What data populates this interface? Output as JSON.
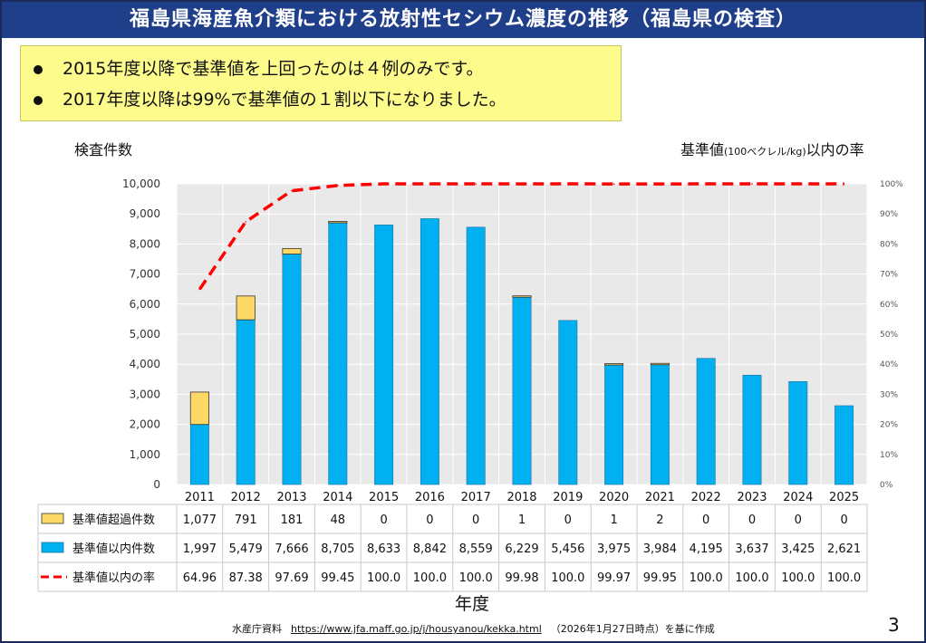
{
  "title": "福島県海産魚介類における放射性セシウム濃度の推移（福島県の検査）",
  "summary": [
    "2015年度以降で基準値を上回ったのは４例のみです。",
    "2017年度以降は99%で基準値の１割以下になりました。"
  ],
  "left_axis_title": "検査件数",
  "right_axis_title": {
    "main": "基準値",
    "unit": "(100ベクレル/kg)",
    "suffix": "以内の率"
  },
  "x_axis_title": "年度",
  "source": {
    "prefix": "水産庁資料",
    "url": "https://www.jfa.maff.go.jp/j/housyanou/kekka.html",
    "suffix": "（2026年1月27日時点）を基に作成"
  },
  "page_number": "3",
  "colors": {
    "title_bg": "#1f3f8a",
    "exceed": "#ffd966",
    "within": "#00b0f0",
    "line": "#ff0000",
    "summary_bg": "#fdfb8c"
  },
  "chart_data": {
    "type": "bar",
    "stacked": true,
    "categories": [
      "2011",
      "2012",
      "2013",
      "2014",
      "2015",
      "2016",
      "2017",
      "2018",
      "2019",
      "2020",
      "2021",
      "2022",
      "2023",
      "2024",
      "2025"
    ],
    "series": [
      {
        "name": "基準値以内件数",
        "axis": "left",
        "values": [
          1997,
          5479,
          7666,
          8705,
          8633,
          8842,
          8559,
          6229,
          5456,
          3975,
          3984,
          4195,
          3637,
          3425,
          2621
        ]
      },
      {
        "name": "基準値超過件数",
        "axis": "left",
        "values": [
          1077,
          791,
          181,
          48,
          0,
          0,
          0,
          1,
          0,
          1,
          2,
          0,
          0,
          0,
          0
        ]
      },
      {
        "name": "基準値以内の率",
        "type": "line",
        "axis": "right",
        "values": [
          64.96,
          87.38,
          97.69,
          99.45,
          100.0,
          100.0,
          100.0,
          99.98,
          100.0,
          99.97,
          99.95,
          100.0,
          100.0,
          100.0,
          100.0
        ]
      }
    ],
    "table_rows": [
      {
        "label": "基準値超過件数",
        "cells": [
          "1,077",
          "791",
          "181",
          "48",
          "0",
          "0",
          "0",
          "1",
          "0",
          "1",
          "2",
          "0",
          "0",
          "0",
          "0"
        ]
      },
      {
        "label": "基準値以内件数",
        "cells": [
          "1,997",
          "5,479",
          "7,666",
          "8,705",
          "8,633",
          "8,842",
          "8,559",
          "6,229",
          "5,456",
          "3,975",
          "3,984",
          "4,195",
          "3,637",
          "3,425",
          "2,621"
        ]
      },
      {
        "label": "基準値以内の率",
        "cells": [
          "64.96",
          "87.38",
          "97.69",
          "99.45",
          "100.0",
          "100.0",
          "100.0",
          "99.98",
          "100.0",
          "99.97",
          "99.95",
          "100.0",
          "100.0",
          "100.0",
          "100.0"
        ]
      }
    ],
    "ylim": [
      0,
      10000
    ],
    "yticks": [
      "0",
      "1,000",
      "2,000",
      "3,000",
      "4,000",
      "5,000",
      "6,000",
      "7,000",
      "8,000",
      "9,000",
      "10,000"
    ],
    "y2lim": [
      0,
      100
    ],
    "y2ticks": [
      "0%",
      "10%",
      "20%",
      "30%",
      "40%",
      "50%",
      "60%",
      "70%",
      "80%",
      "90%",
      "100%"
    ]
  }
}
